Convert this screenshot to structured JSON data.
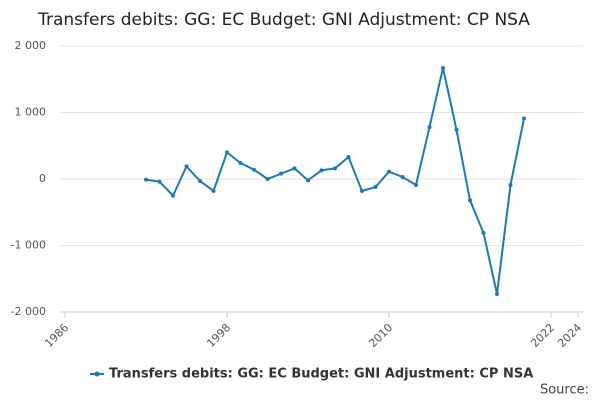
{
  "chart_data": {
    "type": "line",
    "title": "Transfers debits: GG: EC Budget: GNI Adjustment: CP NSA",
    "source": "Source:",
    "x": [
      1992,
      1993,
      1994,
      1995,
      1996,
      1997,
      1998,
      1999,
      2000,
      2001,
      2002,
      2003,
      2004,
      2005,
      2006,
      2007,
      2008,
      2009,
      2010,
      2011,
      2012,
      2013,
      2014,
      2015,
      2016,
      2017,
      2018,
      2019,
      2020
    ],
    "series": [
      {
        "name": "Transfers debits: GG: EC Budget: GNI Adjustment: CP NSA",
        "color": "#1a7ab5",
        "values": [
          -10,
          -40,
          -250,
          190,
          -30,
          -180,
          400,
          240,
          140,
          0,
          80,
          160,
          -20,
          130,
          160,
          330,
          -180,
          -120,
          110,
          30,
          -90,
          780,
          1670,
          740,
          -320,
          -810,
          -1730,
          -90,
          910
        ]
      }
    ],
    "xlim": [
      1986,
      2024
    ],
    "xticks": [
      1986,
      1998,
      2010,
      2022,
      2024
    ],
    "ylim": [
      -2000,
      2000
    ],
    "yticks": [
      {
        "value": -2000,
        "label": "-2 000"
      },
      {
        "value": -1000,
        "label": "-1 000"
      },
      0,
      {
        "value": 1000,
        "label": "1 000"
      },
      {
        "value": 2000,
        "label": "2 000"
      }
    ],
    "grid": true
  }
}
